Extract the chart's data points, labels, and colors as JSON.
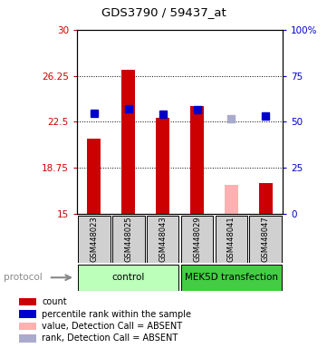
{
  "title": "GDS3790 / 59437_at",
  "samples": [
    "GSM448023",
    "GSM448025",
    "GSM448043",
    "GSM448029",
    "GSM448041",
    "GSM448047"
  ],
  "bar_values": [
    21.1,
    26.75,
    22.85,
    23.75,
    17.35,
    17.55
  ],
  "bar_colors": [
    "#cc0000",
    "#cc0000",
    "#cc0000",
    "#cc0000",
    "#ffb0b0",
    "#cc0000"
  ],
  "rank_percentiles": [
    54.7,
    57.0,
    54.0,
    56.5,
    51.5,
    53.0
  ],
  "rank_colors": [
    "#0000cc",
    "#0000cc",
    "#0000cc",
    "#0000cc",
    "#aaaacc",
    "#0000cc"
  ],
  "ylim_left": [
    15,
    30
  ],
  "ylim_right": [
    0,
    100
  ],
  "yticks_left": [
    15,
    18.75,
    22.5,
    26.25,
    30
  ],
  "yticks_right": [
    0,
    25,
    50,
    75,
    100
  ],
  "groups": [
    {
      "label": "control",
      "start": 0,
      "end": 3,
      "color": "#bbffbb"
    },
    {
      "label": "MEK5D transfection",
      "start": 3,
      "end": 6,
      "color": "#44cc44"
    }
  ],
  "protocol_label": "protocol",
  "legend_items": [
    {
      "label": "count",
      "color": "#cc0000"
    },
    {
      "label": "percentile rank within the sample",
      "color": "#0000cc"
    },
    {
      "label": "value, Detection Call = ABSENT",
      "color": "#ffb0b0"
    },
    {
      "label": "rank, Detection Call = ABSENT",
      "color": "#aaaacc"
    }
  ],
  "bar_width": 0.4,
  "rank_marker_size": 6,
  "background_color": "#ffffff",
  "sample_box_color": "#d0d0d0"
}
